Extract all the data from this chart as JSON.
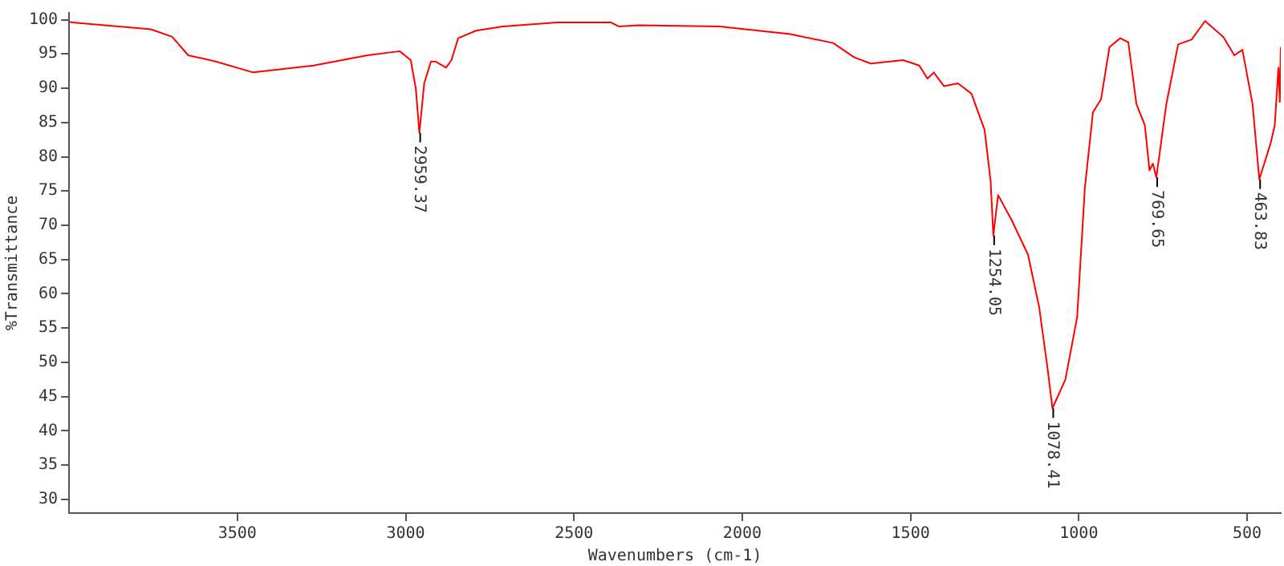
{
  "chart_data": {
    "type": "line",
    "xlabel": "Wavenumbers (cm-1)",
    "ylabel": "%Transmittance",
    "xlim": [
      4000,
      400
    ],
    "ylim": [
      28,
      101
    ],
    "xticks": [
      3500,
      3000,
      2500,
      2000,
      1500,
      1000,
      500
    ],
    "yticks": [
      30,
      35,
      40,
      45,
      50,
      55,
      60,
      65,
      70,
      75,
      80,
      85,
      90,
      95,
      100
    ],
    "grid": false,
    "legend": false,
    "marker": "none",
    "line_style": "solid",
    "series": [
      {
        "color": "#ff0000",
        "x": [
          4000,
          3990,
          3853,
          3757,
          3694,
          3646,
          3564,
          3453,
          3274,
          3114,
          3018,
          2985,
          2970,
          2959.37,
          2945,
          2925,
          2912,
          2880,
          2864,
          2844,
          2791,
          2711,
          2550,
          2390,
          2366,
          2309,
          2068,
          1858,
          1730,
          1667,
          1618,
          1522,
          1474,
          1450,
          1431,
          1401,
          1359,
          1319,
          1280,
          1262,
          1254.05,
          1240,
          1199,
          1151,
          1118,
          1093,
          1078.41,
          1040,
          1005,
          982,
          958,
          934,
          909,
          877,
          853,
          829,
          804,
          790,
          780,
          769.65,
          740,
          705,
          665,
          625,
          571,
          538,
          514,
          484,
          463.83,
          430,
          418,
          407,
          403,
          400
        ],
        "values": [
          99.7,
          99.6,
          99.0,
          98.6,
          97.5,
          94.8,
          93.9,
          92.3,
          93.3,
          94.8,
          95.4,
          94.1,
          90,
          83.5,
          90.7,
          93.9,
          93.9,
          93,
          94.1,
          97.3,
          98.4,
          99.0,
          99.6,
          99.6,
          99.0,
          99.2,
          99.0,
          97.9,
          96.6,
          94.5,
          93.6,
          94.1,
          93.3,
          91.4,
          92.3,
          90.3,
          90.7,
          89.2,
          83.9,
          76.4,
          68.5,
          74.4,
          70.7,
          65.7,
          58.1,
          49.1,
          43.3,
          47.5,
          56.6,
          75.5,
          86.5,
          88.4,
          96.0,
          97.3,
          96.7,
          87.7,
          84.6,
          78,
          79,
          77.0,
          87.7,
          96.4,
          97.1,
          99.8,
          97.5,
          94.8,
          95.6,
          87.7,
          76.7,
          82,
          84.6,
          93,
          88,
          96
        ]
      }
    ],
    "annotations": [
      {
        "text": "2959.37",
        "x": 2959.37,
        "y": 83.5
      },
      {
        "text": "1254.05",
        "x": 1254.05,
        "y": 68.5
      },
      {
        "text": "1078.41",
        "x": 1078.41,
        "y": 43.3
      },
      {
        "text": "769.65",
        "x": 769.65,
        "y": 77.0
      },
      {
        "text": "463.83",
        "x": 463.83,
        "y": 76.7
      }
    ]
  }
}
